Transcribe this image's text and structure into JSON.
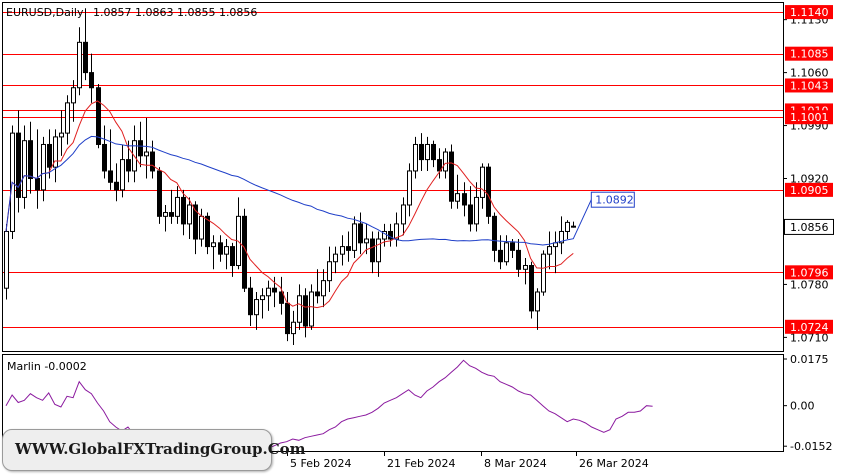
{
  "chart_data": [
    {
      "type": "candlestick",
      "symbol_header": "EURUSD,Daily",
      "ohlc_header": "1.0857 1.0863 1.0855 1.0856",
      "ylim": [
        1.0692,
        1.1152
      ],
      "y_ticks": [
        "1.1130",
        "1.1060",
        "1.0990",
        "1.0920",
        "1.0780",
        "1.0710"
      ],
      "x_ticks": [
        "5 Feb 2024",
        "21 Feb 2024",
        "8 Mar 2024",
        "26 Mar 2024"
      ],
      "levels": [
        {
          "value": 1.114,
          "label": "1.1140",
          "color": "#ff0000"
        },
        {
          "value": 1.1085,
          "label": "1.1085",
          "color": "#ff0000"
        },
        {
          "value": 1.1043,
          "label": "1.1043",
          "color": "#ff0000"
        },
        {
          "value": 1.101,
          "label": "1.1010",
          "color": "#ff0000"
        },
        {
          "value": 1.1001,
          "label": "1.1001",
          "color": "#ff0000"
        },
        {
          "value": 1.0905,
          "label": "1.0905",
          "color": "#ff0000"
        },
        {
          "value": 1.0796,
          "label": "1.0796",
          "color": "#ff0000"
        },
        {
          "value": 1.0724,
          "label": "1.0724",
          "color": "#ff0000"
        }
      ],
      "current_price": {
        "value": 1.0856,
        "label": "1.0856"
      },
      "ma_blue_label": {
        "value": 1.0892,
        "label": "1.0892",
        "color": "#1f3fc8"
      },
      "candles": [
        [
          1.0775,
          1.086,
          1.076,
          1.085
        ],
        [
          1.085,
          1.099,
          1.084,
          1.098
        ],
        [
          1.098,
          1.101,
          1.0875,
          1.0895
        ],
        [
          1.0895,
          1.099,
          1.088,
          1.097
        ],
        [
          1.097,
          1.0995,
          1.09,
          1.092
        ],
        [
          1.092,
          1.0985,
          1.088,
          1.0905
        ],
        [
          1.0905,
          1.0975,
          1.089,
          1.0965
        ],
        [
          1.0965,
          1.0985,
          1.092,
          1.0935
        ],
        [
          1.0935,
          1.0985,
          1.0915,
          1.0975
        ],
        [
          1.0975,
          1.101,
          1.095,
          1.098
        ],
        [
          1.098,
          1.103,
          1.0965,
          1.102
        ],
        [
          1.102,
          1.105,
          1.0995,
          1.104
        ],
        [
          1.104,
          1.112,
          1.103,
          1.11
        ],
        [
          1.11,
          1.1145,
          1.105,
          1.106
        ],
        [
          1.106,
          1.1085,
          1.102,
          1.104
        ],
        [
          1.104,
          1.1045,
          1.096,
          1.0965
        ],
        [
          1.0965,
          1.099,
          1.092,
          1.093
        ],
        [
          1.093,
          1.0985,
          1.0905,
          1.0915
        ],
        [
          1.0915,
          1.094,
          1.089,
          1.0905
        ],
        [
          1.0905,
          1.0965,
          1.0895,
          1.0945
        ],
        [
          1.0945,
          1.097,
          1.0915,
          1.093
        ],
        [
          1.093,
          1.099,
          1.0915,
          1.097
        ],
        [
          1.097,
          1.0995,
          1.0935,
          1.095
        ],
        [
          1.095,
          1.1,
          1.092,
          1.0955
        ],
        [
          1.0955,
          1.097,
          1.092,
          1.093
        ],
        [
          1.093,
          1.0935,
          1.086,
          1.087
        ],
        [
          1.087,
          1.0885,
          1.085,
          1.0875
        ],
        [
          1.0875,
          1.0905,
          1.086,
          1.087
        ],
        [
          1.087,
          1.091,
          1.086,
          1.0895
        ],
        [
          1.0895,
          1.0905,
          1.0845,
          1.086
        ],
        [
          1.086,
          1.0895,
          1.084,
          1.0885
        ],
        [
          1.0885,
          1.089,
          1.082,
          1.084
        ],
        [
          1.084,
          1.088,
          1.083,
          1.087
        ],
        [
          1.087,
          1.0875,
          1.082,
          1.083
        ],
        [
          1.083,
          1.0845,
          1.08,
          1.0835
        ],
        [
          1.0835,
          1.0845,
          1.081,
          1.082
        ],
        [
          1.082,
          1.084,
          1.08,
          1.083
        ],
        [
          1.083,
          1.0835,
          1.079,
          1.0805
        ],
        [
          1.0805,
          1.0895,
          1.08,
          1.087
        ],
        [
          1.087,
          1.088,
          1.077,
          1.0775
        ],
        [
          1.0775,
          1.079,
          1.0725,
          1.074
        ],
        [
          1.074,
          1.077,
          1.072,
          1.076
        ],
        [
          1.076,
          1.0775,
          1.0735,
          1.0765
        ],
        [
          1.0765,
          1.0785,
          1.0745,
          1.0775
        ],
        [
          1.0775,
          1.079,
          1.075,
          1.077
        ],
        [
          1.077,
          1.079,
          1.074,
          1.0755
        ],
        [
          1.0755,
          1.077,
          1.0705,
          1.0715
        ],
        [
          1.0715,
          1.0745,
          1.07,
          1.073
        ],
        [
          1.073,
          1.078,
          1.072,
          1.0765
        ],
        [
          1.0765,
          1.0775,
          1.071,
          1.0725
        ],
        [
          1.0725,
          1.078,
          1.072,
          1.077
        ],
        [
          1.077,
          1.08,
          1.0755,
          1.0765
        ],
        [
          1.0765,
          1.08,
          1.075,
          1.0785
        ],
        [
          1.0785,
          1.083,
          1.077,
          1.081
        ],
        [
          1.081,
          1.083,
          1.0795,
          1.082
        ],
        [
          1.082,
          1.0845,
          1.0805,
          1.083
        ],
        [
          1.083,
          1.085,
          1.081,
          1.0825
        ],
        [
          1.0825,
          1.087,
          1.0815,
          1.086
        ],
        [
          1.086,
          1.0875,
          1.082,
          1.0835
        ],
        [
          1.0835,
          1.086,
          1.082,
          1.084
        ],
        [
          1.084,
          1.085,
          1.0795,
          1.081
        ],
        [
          1.081,
          1.085,
          1.079,
          1.084
        ],
        [
          1.084,
          1.086,
          1.083,
          1.085
        ],
        [
          1.085,
          1.086,
          1.083,
          1.084
        ],
        [
          1.084,
          1.0875,
          1.083,
          1.086
        ],
        [
          1.086,
          1.0895,
          1.0845,
          1.0885
        ],
        [
          1.0885,
          1.094,
          1.087,
          1.093
        ],
        [
          1.093,
          1.0975,
          1.092,
          1.0965
        ],
        [
          1.0965,
          1.098,
          1.093,
          1.0945
        ],
        [
          1.0945,
          1.0975,
          1.093,
          1.0965
        ],
        [
          1.0965,
          1.097,
          1.0935,
          1.0945
        ],
        [
          1.0945,
          1.096,
          1.092,
          1.093
        ],
        [
          1.093,
          1.096,
          1.092,
          1.0955
        ],
        [
          1.0955,
          1.0965,
          1.088,
          1.089
        ],
        [
          1.089,
          1.0925,
          1.088,
          1.09
        ],
        [
          1.09,
          1.0915,
          1.087,
          1.0885
        ],
        [
          1.0885,
          1.091,
          1.085,
          1.086
        ],
        [
          1.086,
          1.0915,
          1.085,
          1.0895
        ],
        [
          1.0895,
          1.094,
          1.088,
          1.0935
        ],
        [
          1.0935,
          1.094,
          1.086,
          1.087
        ],
        [
          1.087,
          1.0875,
          1.081,
          1.0825
        ],
        [
          1.0825,
          1.0845,
          1.08,
          1.081
        ],
        [
          1.081,
          1.0845,
          1.0805,
          1.0835
        ],
        [
          1.0835,
          1.084,
          1.0815,
          1.0825
        ],
        [
          1.0825,
          1.084,
          1.079,
          1.08
        ],
        [
          1.08,
          1.0815,
          1.078,
          1.0805
        ],
        [
          1.0805,
          1.081,
          1.0735,
          1.0745
        ],
        [
          1.0745,
          1.0775,
          1.072,
          1.077
        ],
        [
          1.077,
          1.0825,
          1.0765,
          1.082
        ],
        [
          1.082,
          1.085,
          1.08,
          1.083
        ],
        [
          1.083,
          1.085,
          1.0795,
          1.0835
        ],
        [
          1.0835,
          1.087,
          1.082,
          1.085
        ],
        [
          1.085,
          1.0865,
          1.084,
          1.0862
        ],
        [
          1.0857,
          1.0863,
          1.0855,
          1.0856
        ]
      ],
      "ma_red_length": 8,
      "ma_blue_length": 50
    },
    {
      "type": "line",
      "label": "Marlin -0.0002",
      "ylim": [
        -0.017,
        0.019
      ],
      "y_ticks": [
        {
          "value": 0.0175,
          "label": "0.0175"
        },
        {
          "value": 0.0,
          "label": "0.00"
        },
        {
          "value": -0.0152,
          "label": "-0.0152"
        }
      ],
      "color": "#8b1a9f",
      "values": [
        0.0,
        0.004,
        0.0012,
        0.002,
        0.0045,
        0.003,
        0.002,
        0.0048,
        0.0005,
        -0.0005,
        0.0035,
        0.003,
        0.009,
        0.006,
        0.0045,
        0.001,
        -0.002,
        -0.006,
        -0.008,
        -0.0095,
        -0.008,
        -0.011,
        -0.0125,
        -0.014,
        -0.0135,
        -0.015,
        -0.0155,
        -0.016,
        -0.015,
        -0.0135,
        -0.014,
        -0.013,
        -0.0145,
        -0.015,
        -0.016,
        -0.0155,
        -0.015,
        -0.0145,
        -0.014,
        -0.015,
        -0.0155,
        -0.0165,
        -0.0168,
        -0.016,
        -0.015,
        -0.014,
        -0.0135,
        -0.0125,
        -0.013,
        -0.012,
        -0.0115,
        -0.011,
        -0.0105,
        -0.009,
        -0.008,
        -0.006,
        -0.005,
        -0.0045,
        -0.004,
        -0.0035,
        -0.0025,
        -0.001,
        0.001,
        0.002,
        0.003,
        0.0045,
        0.006,
        0.004,
        0.003,
        0.0055,
        0.007,
        0.009,
        0.0105,
        0.0125,
        0.0145,
        0.017,
        0.015,
        0.014,
        0.0125,
        0.0115,
        0.011,
        0.009,
        0.008,
        0.007,
        0.0055,
        0.0045,
        0.004,
        0.002,
        0.0,
        -0.002,
        -0.003,
        -0.0045,
        -0.006,
        -0.005,
        -0.0055,
        -0.0065,
        -0.008,
        -0.009,
        -0.01,
        -0.009,
        -0.005,
        -0.004,
        -0.0025,
        -0.0025,
        -0.002,
        0.0,
        -0.0002
      ]
    }
  ],
  "watermark_text": "WWW.GlobalFXTradingGroup.Com"
}
